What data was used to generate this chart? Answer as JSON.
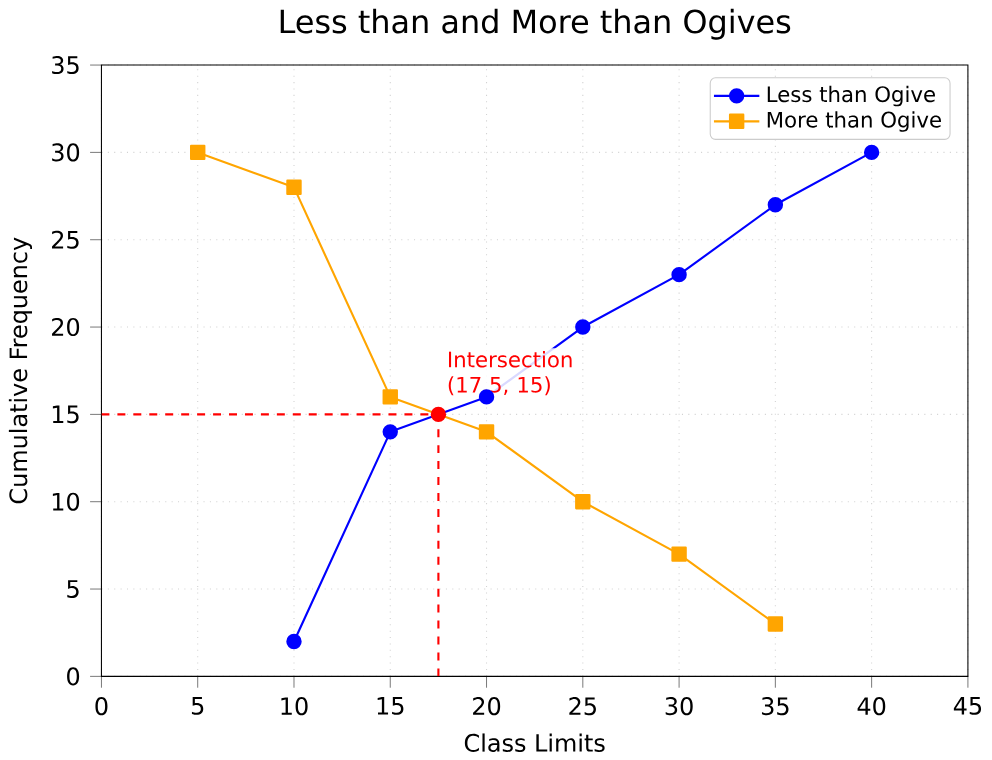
{
  "chart_data": {
    "type": "line",
    "title": "Less than and More than Ogives",
    "xlabel": "Class Limits",
    "ylabel": "Cumulative Frequency",
    "xlim": [
      0,
      45
    ],
    "ylim": [
      0,
      35
    ],
    "xticks": [
      0,
      5,
      10,
      15,
      20,
      25,
      30,
      35,
      40,
      45
    ],
    "yticks": [
      0,
      5,
      10,
      15,
      20,
      25,
      30,
      35
    ],
    "grid": true,
    "legend": "top right",
    "series": [
      {
        "name": "Less than Ogive",
        "color": "#0000ff",
        "marker": "circle",
        "x": [
          10,
          15,
          20,
          25,
          30,
          35,
          40
        ],
        "values": [
          2,
          14,
          16,
          20,
          23,
          27,
          30
        ]
      },
      {
        "name": "More than Ogive",
        "color": "#ffa500",
        "marker": "square",
        "x": [
          5,
          10,
          15,
          20,
          25,
          30,
          35
        ],
        "values": [
          30,
          28,
          16,
          14,
          10,
          7,
          3
        ]
      },
      {
        "type": "scatter",
        "color": "#ff0000",
        "marker": "circle",
        "x": [
          17.5
        ],
        "values": [
          15
        ]
      }
    ],
    "ref_lines": [
      {
        "axis": "y",
        "value": 15,
        "color": "#ff0000",
        "line_style": "dashed"
      },
      {
        "axis": "x",
        "value": 17.5,
        "color": "#ff0000",
        "line_style": "dashed"
      }
    ],
    "annotations": [
      {
        "text": "Intersection (17.5, 15)",
        "x": 17.5,
        "y": 15
      }
    ]
  }
}
